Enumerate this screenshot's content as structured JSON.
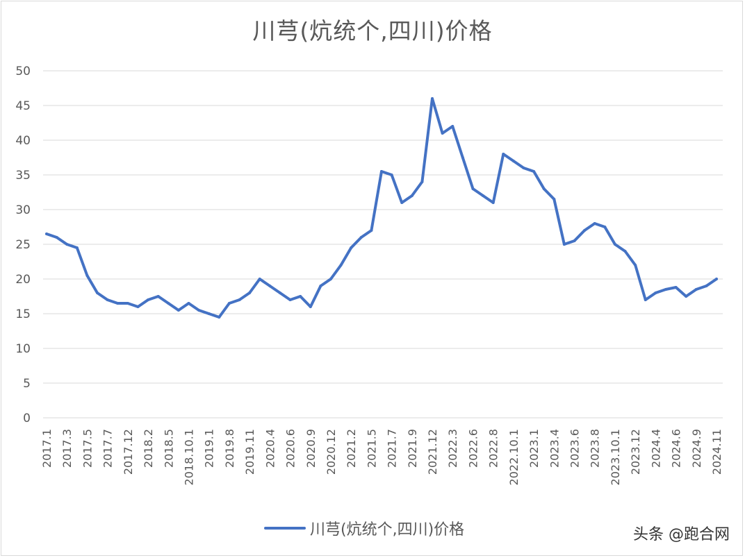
{
  "chart_data": {
    "type": "line",
    "title": "川芎(炕统个,四川)价格",
    "xlabel": "",
    "ylabel": "",
    "ylim": [
      0,
      50
    ],
    "yticks": [
      0,
      5,
      10,
      15,
      20,
      25,
      30,
      35,
      40,
      45,
      50
    ],
    "grid": true,
    "legend_position": "bottom",
    "line_color": "#4472c4",
    "tick_labels": [
      "2017.1",
      "2017.3",
      "2017.5",
      "2017.7",
      "2017.12",
      "2018.2",
      "2018.5",
      "2018.10.1",
      "2019.1",
      "2019.8",
      "2019.11",
      "2020.4",
      "2020.6",
      "2020.9",
      "2020.12",
      "2021.2",
      "2021.5",
      "2021.7",
      "2021.9",
      "2021.12",
      "2022.3",
      "2022.6",
      "2022.8",
      "2022.10.1",
      "2023.1",
      "2023.4",
      "2023.6",
      "2023.8",
      "2023.10.1",
      "2023.12",
      "2024.4",
      "2024.6",
      "2024.9",
      "2024.11"
    ],
    "series": [
      {
        "name": "川芎(炕统个,四川)价格",
        "values": [
          26.5,
          26,
          25,
          24.5,
          20.5,
          18,
          17,
          16.5,
          16.5,
          16,
          17,
          17.5,
          16.5,
          15.5,
          16.5,
          15.5,
          15,
          14.5,
          16.5,
          17,
          18,
          20,
          19,
          18,
          17,
          17.5,
          16,
          19,
          20,
          22,
          24.5,
          26,
          27,
          35.5,
          35,
          31,
          32,
          34,
          46,
          41,
          42,
          37.5,
          33,
          32,
          31,
          38,
          37,
          36,
          35.5,
          33,
          31.5,
          25,
          25.5,
          27,
          28,
          27.5,
          25,
          24,
          22,
          17,
          18,
          18.5,
          18.8,
          17.5,
          18.5,
          19,
          20
        ]
      }
    ]
  },
  "watermark": "头条 @跑合网"
}
